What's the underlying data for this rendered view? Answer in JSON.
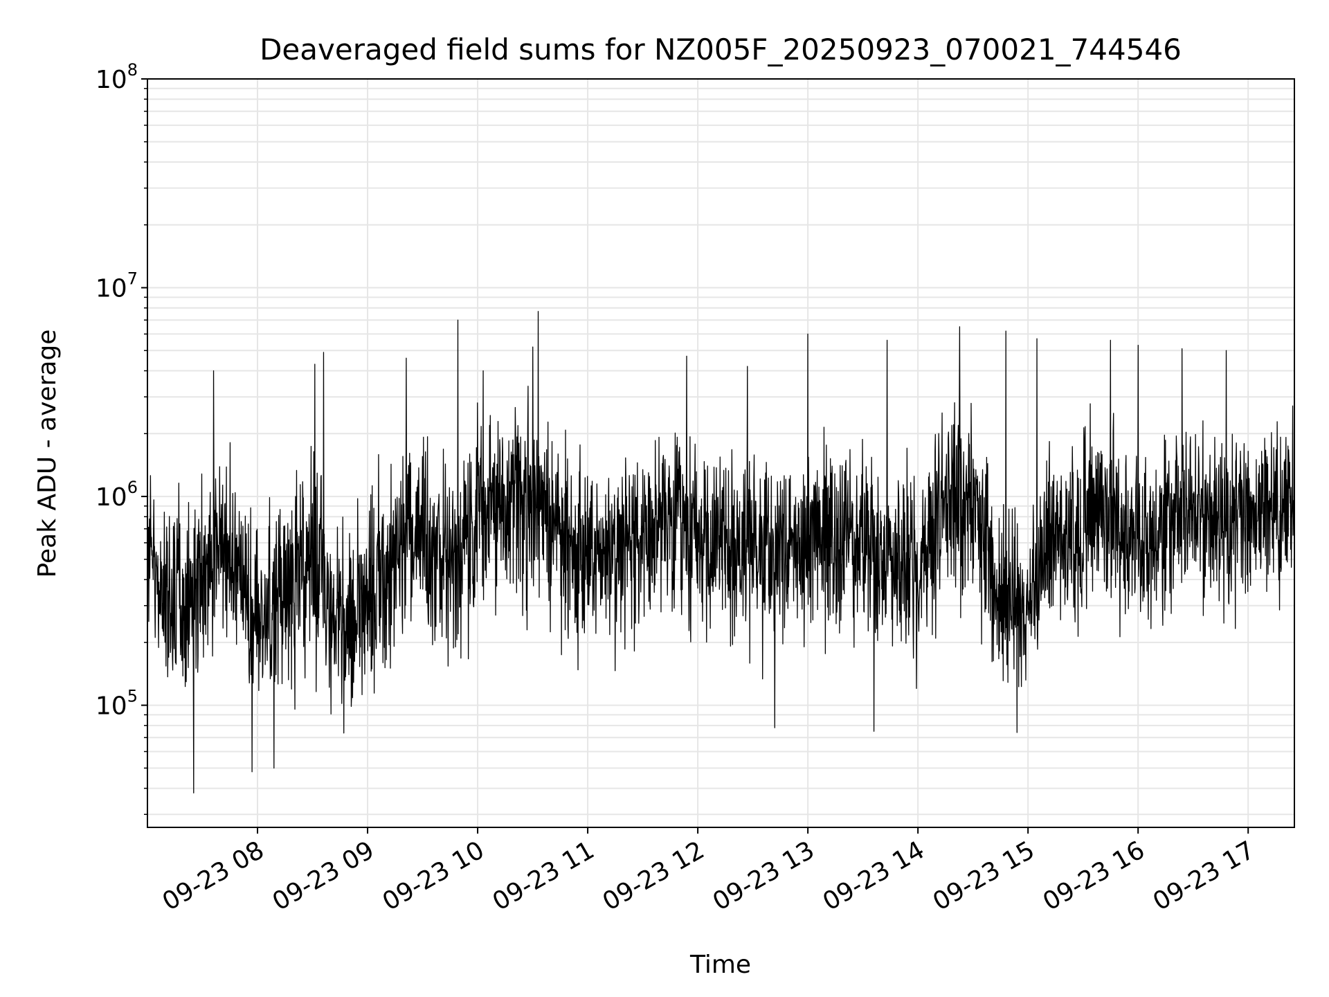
{
  "chart_data": {
    "type": "line",
    "title": "Deaveraged field sums for NZ005F_20250923_070021_744546",
    "xlabel": "Time",
    "ylabel": "Peak ADU - average",
    "yscale": "log",
    "ylim": [
      26000,
      100000000
    ],
    "xlim_hours": [
      7.0,
      17.42
    ],
    "grid": true,
    "line_color": "#000000",
    "grid_color": "#e6e6e6",
    "x_ticks": [
      {
        "hour": 8,
        "label": "09-23 08"
      },
      {
        "hour": 9,
        "label": "09-23 09"
      },
      {
        "hour": 10,
        "label": "09-23 10"
      },
      {
        "hour": 11,
        "label": "09-23 11"
      },
      {
        "hour": 12,
        "label": "09-23 12"
      },
      {
        "hour": 13,
        "label": "09-23 13"
      },
      {
        "hour": 14,
        "label": "09-23 14"
      },
      {
        "hour": 15,
        "label": "09-23 15"
      },
      {
        "hour": 16,
        "label": "09-23 16"
      },
      {
        "hour": 17,
        "label": "09-23 17"
      }
    ],
    "y_ticks": [
      {
        "value": 100000,
        "base": "10",
        "exp": "5"
      },
      {
        "value": 1000000,
        "base": "10",
        "exp": "6"
      },
      {
        "value": 10000000,
        "base": "10",
        "exp": "7"
      },
      {
        "value": 100000000,
        "base": "10",
        "exp": "8"
      }
    ],
    "series": [
      {
        "name": "Peak ADU - average",
        "x_hours": [
          7.0,
          7.25,
          7.5,
          7.75,
          8.0,
          8.25,
          8.5,
          8.75,
          9.0,
          9.25,
          9.5,
          9.75,
          10.0,
          10.25,
          10.5,
          10.75,
          11.0,
          11.25,
          11.5,
          11.75,
          12.0,
          12.25,
          12.5,
          12.75,
          13.0,
          13.25,
          13.5,
          13.75,
          14.0,
          14.25,
          14.5,
          14.75,
          15.0,
          15.25,
          15.5,
          15.75,
          16.0,
          16.25,
          16.5,
          16.75,
          17.0,
          17.25,
          17.42
        ],
        "median": [
          600000,
          250000,
          450000,
          550000,
          300000,
          320000,
          550000,
          230000,
          280000,
          550000,
          700000,
          500000,
          800000,
          1000000,
          900000,
          700000,
          550000,
          600000,
          650000,
          850000,
          700000,
          650000,
          620000,
          600000,
          650000,
          700000,
          600000,
          500000,
          420000,
          1000000,
          1100000,
          300000,
          320000,
          650000,
          700000,
          800000,
          550000,
          750000,
          900000,
          800000,
          850000,
          1000000,
          900000
        ],
        "low": [
          150000,
          70000,
          100000,
          150000,
          70000,
          70000,
          100000,
          60000,
          60000,
          100000,
          150000,
          90000,
          150000,
          180000,
          150000,
          130000,
          120000,
          130000,
          130000,
          180000,
          140000,
          130000,
          120000,
          110000,
          140000,
          140000,
          120000,
          100000,
          90000,
          180000,
          200000,
          80000,
          90000,
          140000,
          160000,
          180000,
          140000,
          180000,
          220000,
          200000,
          200000,
          250000,
          250000
        ],
        "high": [
          1500000,
          1500000,
          2000000,
          2000000,
          1500000,
          1500000,
          2500000,
          1200000,
          1500000,
          2500000,
          3000000,
          2500000,
          4000000,
          4000000,
          3500000,
          2500000,
          2000000,
          2500000,
          2500000,
          3000000,
          2500000,
          2200000,
          2200000,
          2000000,
          2500000,
          3000000,
          2500000,
          2000000,
          1800000,
          3500000,
          4000000,
          1500000,
          1500000,
          2500000,
          3000000,
          3500000,
          2500000,
          3000000,
          3500000,
          3000000,
          3000000,
          3500000,
          3000000
        ],
        "spikes": [
          {
            "hour": 7.6,
            "value": 4000000
          },
          {
            "hour": 7.42,
            "value": 38000
          },
          {
            "hour": 8.52,
            "value": 4300000
          },
          {
            "hour": 8.6,
            "value": 4900000
          },
          {
            "hour": 9.35,
            "value": 4600000
          },
          {
            "hour": 9.82,
            "value": 7000000
          },
          {
            "hour": 10.05,
            "value": 4000000
          },
          {
            "hour": 10.5,
            "value": 5200000
          },
          {
            "hour": 10.55,
            "value": 7700000
          },
          {
            "hour": 11.9,
            "value": 4700000
          },
          {
            "hour": 12.45,
            "value": 4200000
          },
          {
            "hour": 13.0,
            "value": 6000000
          },
          {
            "hour": 13.72,
            "value": 5600000
          },
          {
            "hour": 14.38,
            "value": 6500000
          },
          {
            "hour": 14.8,
            "value": 6200000
          },
          {
            "hour": 15.08,
            "value": 5700000
          },
          {
            "hour": 15.75,
            "value": 5600000
          },
          {
            "hour": 16.0,
            "value": 5300000
          },
          {
            "hour": 16.4,
            "value": 5100000
          },
          {
            "hour": 16.8,
            "value": 5000000
          },
          {
            "hour": 12.7,
            "value": 78000
          },
          {
            "hour": 13.6,
            "value": 75000
          },
          {
            "hour": 14.9,
            "value": 74000
          },
          {
            "hour": 7.95,
            "value": 48000
          },
          {
            "hour": 8.15,
            "value": 50000
          }
        ]
      }
    ]
  }
}
